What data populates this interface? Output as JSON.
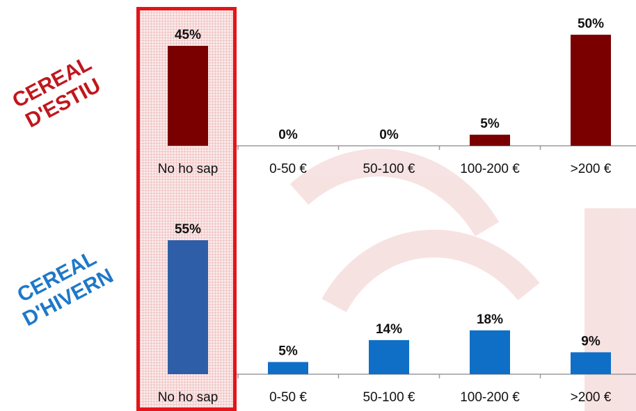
{
  "side_titles": {
    "estiu": [
      "CEREAL",
      "D'ESTIU"
    ],
    "hivern": [
      "CEREAL",
      "D'HIVERN"
    ]
  },
  "colors": {
    "estiu": "#7a0000",
    "hivern_highlight": "#2f5ea8",
    "hivern": "#0f6fc6",
    "highlight_border": "#e3141b"
  },
  "chart_data": [
    {
      "type": "bar",
      "categories": [
        "No ho sap",
        "0-50 €",
        "50-100 €",
        "100-200 €",
        ">200 €"
      ],
      "values": [
        45,
        0,
        0,
        5,
        50
      ],
      "value_labels": [
        "45%",
        "0%",
        "0%",
        "5%",
        "50%"
      ],
      "ylim": [
        0,
        50
      ]
    },
    {
      "type": "bar",
      "categories": [
        "No ho sap",
        "0-50 €",
        "50-100 €",
        "100-200 €",
        ">200 €"
      ],
      "values": [
        55,
        5,
        14,
        18,
        9
      ],
      "value_labels": [
        "55%",
        "5%",
        "14%",
        "18%",
        "9%"
      ],
      "ylim": [
        0,
        55
      ]
    }
  ]
}
